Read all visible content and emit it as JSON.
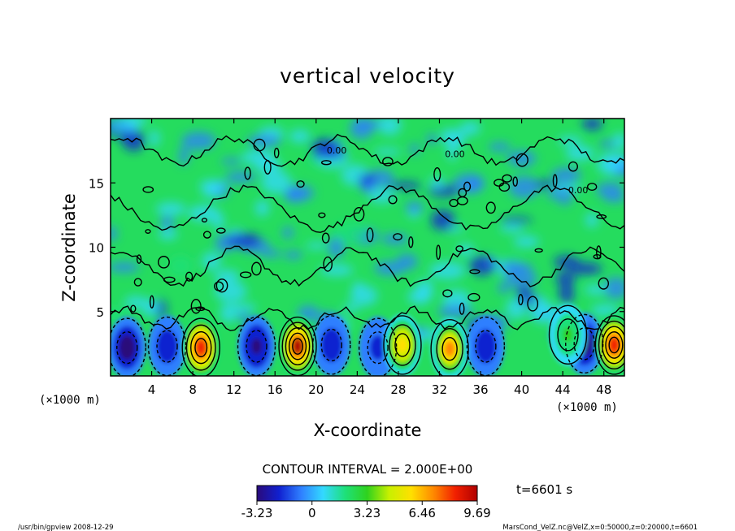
{
  "chart_data": {
    "type": "heatmap",
    "title": "vertical velocity",
    "xlabel": "X-coordinate",
    "ylabel": "Z-coordinate",
    "x_unit": "(×1000 m)",
    "y_unit": "(×1000 m)",
    "xlim": [
      0,
      50
    ],
    "ylim": [
      0,
      20
    ],
    "x_ticks": [
      4,
      8,
      12,
      16,
      20,
      24,
      28,
      32,
      36,
      40,
      44,
      48
    ],
    "y_ticks": [
      5,
      10,
      15
    ],
    "contour_interval_text": "CONTOUR INTERVAL = 2.000E+00",
    "colorbar": {
      "range": [
        -3.23,
        9.69
      ],
      "tick_values": [
        -3.23,
        0,
        3.23,
        6.46,
        9.69
      ],
      "tick_labels": [
        "-3.23",
        "0",
        "3.23",
        "6.46",
        "9.69"
      ],
      "colors": [
        "#2a0a7a",
        "#1020d0",
        "#2f7fff",
        "#33d9ff",
        "#1ee07a",
        "#2fd21e",
        "#c8f000",
        "#ffe000",
        "#ff8a00",
        "#f22000",
        "#b00000"
      ]
    },
    "zero_contour_label": "0.00",
    "updrafts": [
      {
        "x": 8.8,
        "z": 2.2,
        "peak": 8.5
      },
      {
        "x": 18.2,
        "z": 2.3,
        "peak": 9.2
      },
      {
        "x": 28.4,
        "z": 2.4,
        "peak": 6.0
      },
      {
        "x": 33.0,
        "z": 2.1,
        "peak": 6.5
      },
      {
        "x": 44.5,
        "z": 3.2,
        "peak": 3.0
      },
      {
        "x": 49.0,
        "z": 2.4,
        "peak": 9.0
      }
    ],
    "downdrafts": [
      {
        "x": 1.6,
        "z": 2.2,
        "peak": -3.2
      },
      {
        "x": 5.5,
        "z": 2.3,
        "peak": -2.0
      },
      {
        "x": 14.2,
        "z": 2.3,
        "peak": -2.6
      },
      {
        "x": 21.5,
        "z": 2.4,
        "peak": -2.4
      },
      {
        "x": 26.0,
        "z": 2.2,
        "peak": -1.8
      },
      {
        "x": 36.5,
        "z": 2.3,
        "peak": -2.2
      },
      {
        "x": 46.1,
        "z": 2.5,
        "peak": -3.2
      }
    ]
  },
  "time_label": "t=6601 s",
  "footer": {
    "left": "/usr/bin/gpview   2008-12-29",
    "right": "MarsCond_VelZ.nc@VelZ,x=0:50000,z=0:20000,t=6601"
  }
}
